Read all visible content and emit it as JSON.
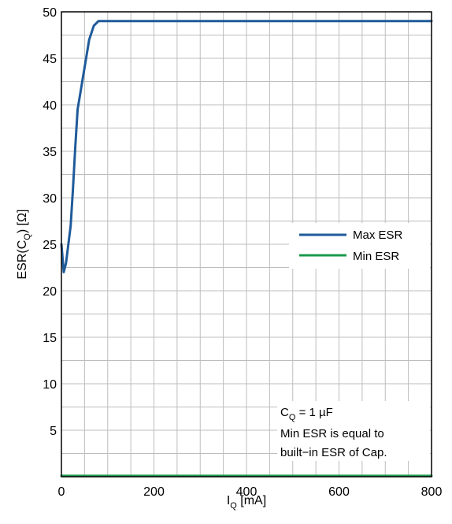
{
  "chart_data": {
    "type": "line",
    "xlabel": {
      "main": "I",
      "sub": "Q",
      "unit": " [mA]"
    },
    "ylabel": {
      "main": "ESR(C",
      "sub": "Q",
      "unit": ") [Ω]"
    },
    "xlim": [
      0,
      800
    ],
    "ylim": [
      0,
      50
    ],
    "x_ticks": [
      0,
      200,
      400,
      600,
      800
    ],
    "x_tick_labels": [
      "0",
      "200",
      "400",
      "600",
      "800"
    ],
    "y_ticks": [
      5,
      10,
      15,
      20,
      25,
      30,
      35,
      40,
      45,
      50
    ],
    "y_tick_labels": [
      "5",
      "10",
      "15",
      "20",
      "25",
      "30",
      "35",
      "40",
      "45",
      "50"
    ],
    "grid": true,
    "x_minor_step": 50,
    "y_minor_step": 2.5,
    "legend_position": "right",
    "series": [
      {
        "name": "Max ESR",
        "color": "#1f5b9a",
        "x": [
          0,
          5,
          10,
          15,
          20,
          25,
          30,
          35,
          40,
          50,
          60,
          70,
          80,
          90,
          100,
          150,
          200,
          300,
          400,
          500,
          600,
          700,
          800
        ],
        "y": [
          25,
          22,
          23,
          25,
          27,
          31,
          35.5,
          39.5,
          41,
          44,
          47,
          48.5,
          49,
          49,
          49,
          49,
          49,
          49,
          49,
          49,
          49,
          49,
          49
        ]
      },
      {
        "name": "Min ESR",
        "color": "#1a9a4c",
        "x": [
          0,
          800
        ],
        "y": [
          0.1,
          0.1
        ]
      }
    ],
    "annotation": {
      "line1_main": "C",
      "line1_sub": "Q",
      "line1_rest": " = 1 µF",
      "line2": "Min ESR is equal to",
      "line3": "built−in ESR of Cap."
    }
  }
}
